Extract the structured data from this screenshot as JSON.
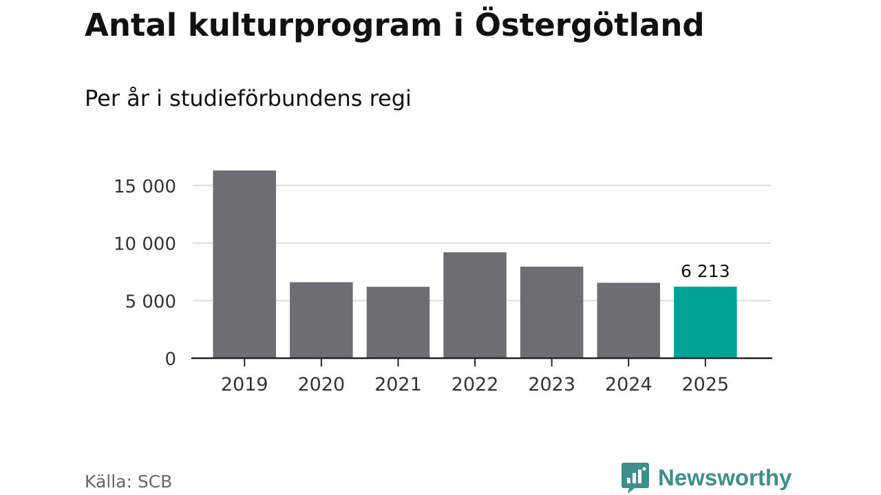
{
  "title": "Antal kulturprogram i Östergötland",
  "subtitle": "Per år i studieförbundens regi",
  "source": "Källa: SCB",
  "brand": {
    "name": "Newsworthy",
    "icon": "newsworthy-logo-icon",
    "color": "#3d8f8c"
  },
  "chart_data": {
    "type": "bar",
    "categories": [
      "2019",
      "2020",
      "2021",
      "2022",
      "2023",
      "2024",
      "2025"
    ],
    "values": [
      16300,
      6600,
      6200,
      9200,
      7950,
      6550,
      6213
    ],
    "value_labels": [
      "",
      "",
      "",
      "",
      "",
      "",
      "6 213"
    ],
    "yticks": [
      0,
      5000,
      10000,
      15000
    ],
    "ytick_labels": [
      "0",
      "5 000",
      "10 000",
      "15 000"
    ],
    "ylim": [
      0,
      16300
    ],
    "grid": true,
    "bar_color": "#6e6d73",
    "highlight_color": "#00a497",
    "highlight_index": 6,
    "grid_color": "#dddddd",
    "axis_color": "#222222"
  }
}
